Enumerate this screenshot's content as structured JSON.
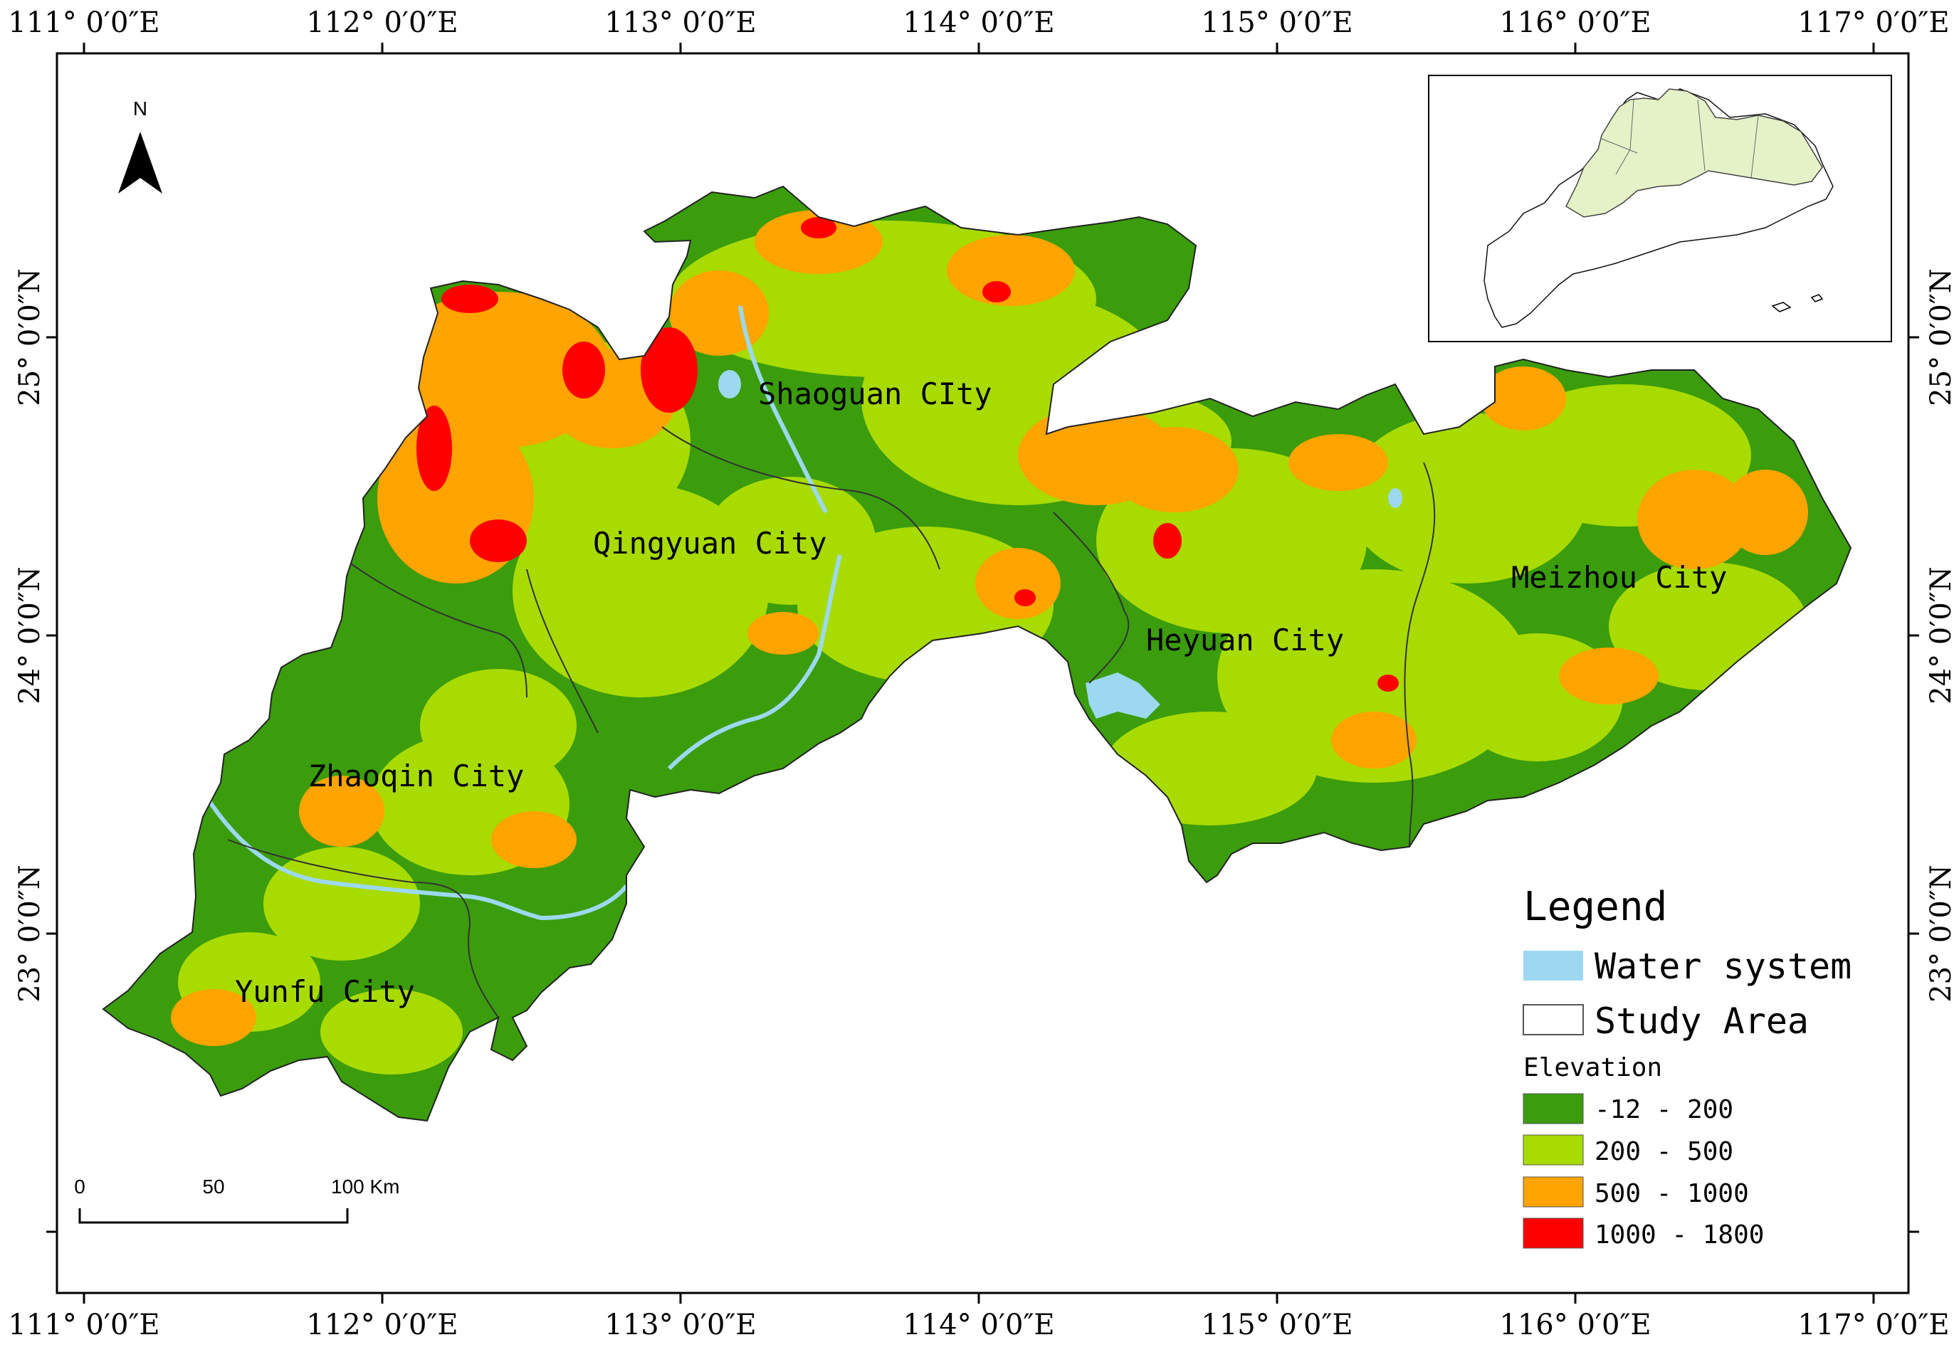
{
  "top_labels": [
    "111° 0′0″E",
    "112° 0′0″E",
    "113° 0′0″E",
    "114° 0′0″E",
    "115° 0′0″E",
    "116° 0′0″E",
    "117° 0′0″E"
  ],
  "bottom_labels": [
    "111° 0′0″E",
    "112° 0′0″E",
    "113° 0′0″E",
    "114° 0′0″E",
    "115° 0′0″E",
    "116° 0′0″E",
    "117° 0′0″E"
  ],
  "left_labels": [
    "25° 0′0″N",
    "24° 0′0″N",
    "23° 0′0″N"
  ],
  "right_labels": [
    "25° 0′0″N",
    "24° 0′0″N",
    "23° 0′0″N"
  ],
  "north_label": "N",
  "cities": {
    "shaoguan": "Shaoguan CIty",
    "qingyuan": "Qingyuan City",
    "heyuan": "Heyuan City",
    "meizhou": "Meizhou City",
    "zhaoqin": "Zhaoqin City",
    "yunfu": "Yunfu City"
  },
  "legend": {
    "title": "Legend",
    "water": "Water system",
    "study_area": "Study Area",
    "elevation_title": "Elevation",
    "classes": [
      {
        "label": "-12 - 200",
        "color": "#3b9c0c"
      },
      {
        "label": "200 - 500",
        "color": "#a8db00"
      },
      {
        "label": "500 - 1000",
        "color": "#ffa400"
      },
      {
        "label": "1000 - 1800",
        "color": "#ff0000"
      }
    ],
    "water_color": "#9cd9f0"
  },
  "scale_bar": {
    "labels": [
      "0",
      "50",
      "100 Km"
    ]
  }
}
